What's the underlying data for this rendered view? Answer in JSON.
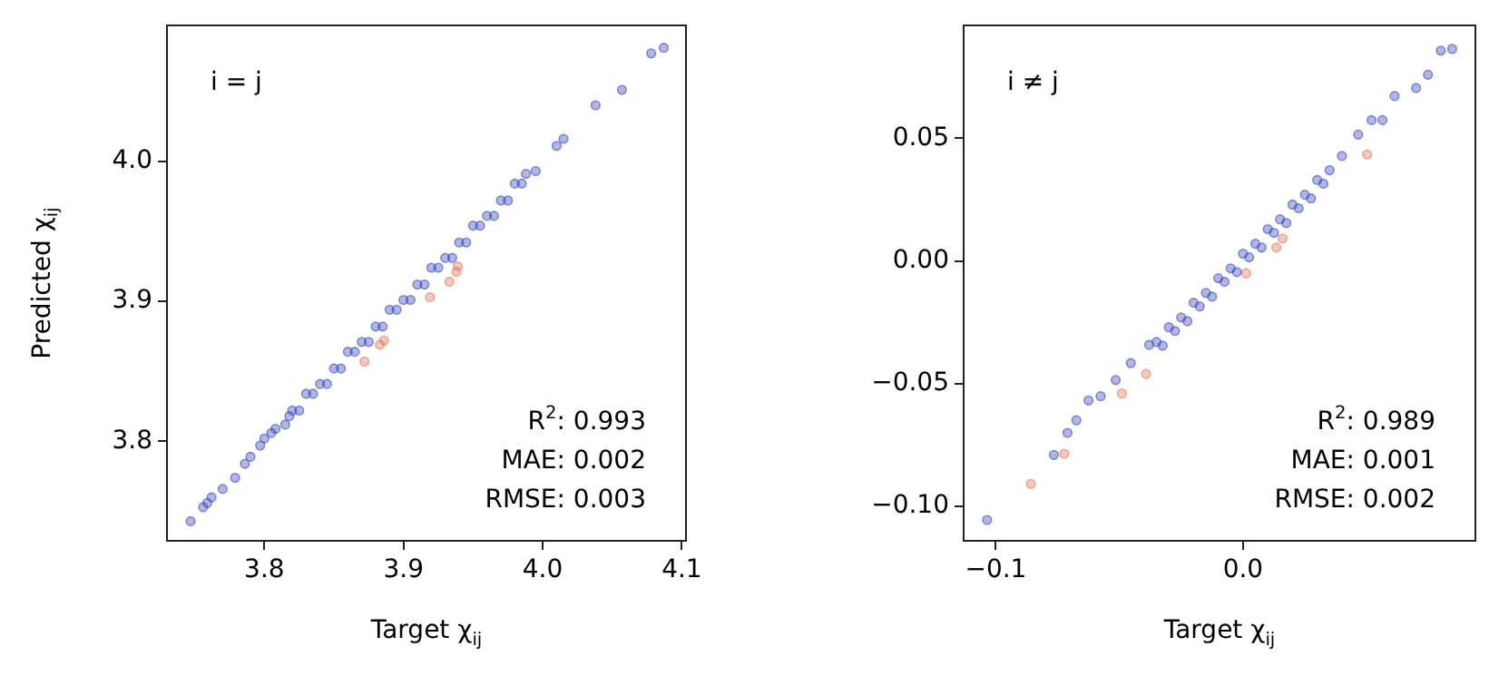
{
  "chart_data": [
    {
      "type": "scatter",
      "xlabel": "Target χ$_{ij}$",
      "ylabel": "Predicted χ$_{ij}$",
      "xlim": [
        3.73,
        4.103
      ],
      "ylim": [
        3.729,
        4.097
      ],
      "xticks": [
        {
          "value": 3.8,
          "label": "3.8"
        },
        {
          "value": 3.9,
          "label": "3.9"
        },
        {
          "value": 4.0,
          "label": "4.0"
        },
        {
          "value": 4.1,
          "label": "4.1"
        }
      ],
      "yticks": [
        {
          "value": 3.8,
          "label": "3.8"
        },
        {
          "value": 3.9,
          "label": "3.9"
        },
        {
          "value": 4.0,
          "label": "4.0"
        }
      ],
      "grid": false,
      "marker": "circle",
      "annotations": [
        "i = j",
        "R$^{2}$: 0.993",
        "MAE: 0.002",
        "RMSE: 0.003"
      ],
      "series": [
        {
          "color": "#3b4cc0",
          "x": [
            3.747,
            3.756,
            3.759,
            3.762,
            3.77,
            3.779,
            3.786,
            3.79,
            3.797,
            3.8,
            3.805,
            3.808,
            3.815,
            3.818,
            3.82,
            3.825,
            3.83,
            3.835,
            3.84,
            3.845,
            3.85,
            3.855,
            3.86,
            3.865,
            3.87,
            3.875,
            3.88,
            3.885,
            3.89,
            3.895,
            3.9,
            3.905,
            3.91,
            3.915,
            3.92,
            3.925,
            3.93,
            3.935,
            3.94,
            3.945,
            3.95,
            3.955,
            3.96,
            3.965,
            3.97,
            3.975,
            3.98,
            3.985,
            3.988,
            3.995,
            4.01,
            4.015,
            4.038,
            4.057,
            4.078,
            4.087
          ],
          "values": [
            3.743,
            3.753,
            3.756,
            3.76,
            3.766,
            3.774,
            3.784,
            3.789,
            3.797,
            3.802,
            3.806,
            3.809,
            3.812,
            3.818,
            3.822,
            3.822,
            3.834,
            3.834,
            3.841,
            3.841,
            3.852,
            3.852,
            3.864,
            3.864,
            3.871,
            3.871,
            3.882,
            3.882,
            3.894,
            3.894,
            3.901,
            3.901,
            3.912,
            3.912,
            3.924,
            3.924,
            3.931,
            3.931,
            3.942,
            3.942,
            3.954,
            3.954,
            3.961,
            3.961,
            3.972,
            3.972,
            3.984,
            3.984,
            3.991,
            3.993,
            4.011,
            4.016,
            4.04,
            4.051,
            4.077,
            4.081
          ]
        },
        {
          "color": "#e8795e",
          "x": [
            3.939,
            3.933,
            3.938,
            3.919,
            3.883,
            3.886,
            3.872
          ],
          "values": [
            3.925,
            3.914,
            3.921,
            3.903,
            3.869,
            3.872,
            3.857
          ]
        }
      ]
    },
    {
      "type": "scatter",
      "xlabel": "Target χ$_{ij}$",
      "xlim": [
        -0.113,
        0.094
      ],
      "ylim": [
        -0.114,
        0.096
      ],
      "xticks": [
        {
          "value": -0.1,
          "label": "−0.1"
        },
        {
          "value": 0.0,
          "label": "0.0"
        }
      ],
      "yticks": [
        {
          "value": -0.1,
          "label": "−0.10"
        },
        {
          "value": -0.05,
          "label": "−0.05"
        },
        {
          "value": 0.0,
          "label": "0.00"
        },
        {
          "value": 0.05,
          "label": "0.05"
        }
      ],
      "grid": false,
      "marker": "circle",
      "annotations": [
        "i ≠ j",
        "R$^{2}$: 0.989",
        "MAE: 0.001",
        "RMSE: 0.002"
      ],
      "series": [
        {
          "color": "#3b4cc0",
          "x": [
            -0.1035,
            -0.0765,
            -0.071,
            -0.0674,
            -0.0625,
            -0.0576,
            -0.0515,
            -0.0454,
            -0.038,
            -0.035,
            -0.0325,
            -0.03,
            -0.0275,
            -0.025,
            -0.0225,
            -0.02,
            -0.0175,
            -0.015,
            -0.0125,
            -0.01,
            -0.0075,
            -0.005,
            -0.0025,
            0.0,
            0.0025,
            0.005,
            0.0075,
            0.01,
            0.0125,
            0.015,
            0.0175,
            0.02,
            0.0225,
            0.025,
            0.0275,
            0.03,
            0.0325,
            0.035,
            0.04,
            0.0466,
            0.052,
            0.0564,
            0.0613,
            0.07,
            0.0748,
            0.08,
            0.0846
          ],
          "values": [
            -0.1055,
            -0.079,
            -0.07,
            -0.0649,
            -0.0568,
            -0.0551,
            -0.0485,
            -0.0416,
            -0.0342,
            -0.033,
            -0.0345,
            -0.027,
            -0.0285,
            -0.023,
            -0.0245,
            -0.017,
            -0.0185,
            -0.013,
            -0.0145,
            -0.007,
            -0.0085,
            -0.003,
            -0.0045,
            0.003,
            0.0015,
            0.007,
            0.0055,
            0.013,
            0.0115,
            0.017,
            0.0155,
            0.023,
            0.0215,
            0.027,
            0.0255,
            0.033,
            0.0315,
            0.037,
            0.0428,
            0.0515,
            0.0574,
            0.0574,
            0.0672,
            0.0705,
            0.0759,
            0.0857,
            0.0864
          ]
        },
        {
          "color": "#e8795e",
          "x": [
            0.0502,
            0.0135,
            0.016,
            0.0012,
            -0.0392,
            -0.0723,
            -0.0858,
            -0.049
          ],
          "values": [
            0.0434,
            0.0055,
            0.0092,
            -0.005,
            -0.046,
            -0.0785,
            -0.0908,
            -0.054
          ]
        }
      ]
    }
  ]
}
